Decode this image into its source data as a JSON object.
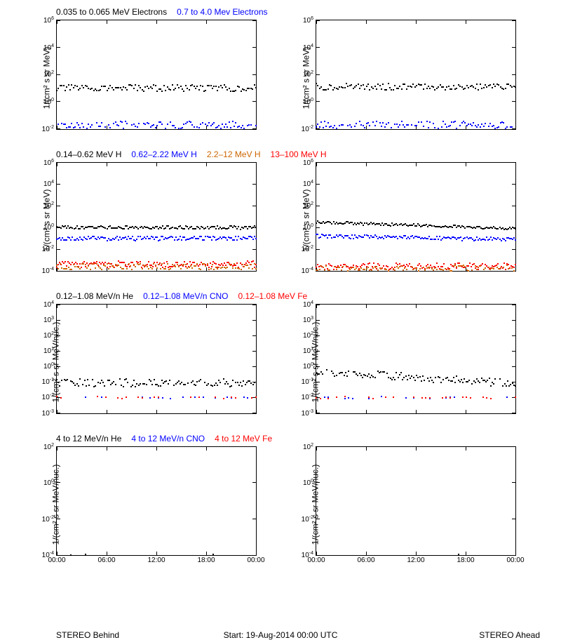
{
  "layout": {
    "rows": 4,
    "cols": 2
  },
  "xaxis": {
    "ticks": [
      "00:00",
      "06:00",
      "12:00",
      "18:00",
      "00:00"
    ],
    "showOnRows": [
      3
    ]
  },
  "bottom": {
    "left": "STEREO Behind",
    "mid": "Start: 19-Aug-2014 00:00 UTC",
    "right": "STEREO Ahead"
  },
  "rows": [
    {
      "ylabel": "1/(cm² s sr MeV)",
      "yexp": [
        -2,
        0,
        2,
        4,
        6
      ],
      "titles": [
        {
          "text": "0.035 to 0.065 MeV Electrons",
          "color": "#000000"
        },
        {
          "text": "0.7 to 4.0 Mev Electrons",
          "color": "#0000ff"
        }
      ],
      "titlesRight": [],
      "series": {
        "left": [
          {
            "color": "#000000",
            "baseExp": 1.0,
            "jitter": 0.25,
            "n": 120
          },
          {
            "color": "#0000ff",
            "baseExp": -1.8,
            "jitter": 0.35,
            "n": 120
          }
        ],
        "right": [
          {
            "color": "#000000",
            "baseExp": 1.1,
            "jitter": 0.25,
            "n": 120
          },
          {
            "color": "#0000ff",
            "baseExp": -1.8,
            "jitter": 0.35,
            "n": 120
          }
        ]
      }
    },
    {
      "ylabel": "1/(cm² s sr MeV)",
      "yexp": [
        -4,
        -2,
        0,
        2,
        4,
        6
      ],
      "titles": [
        {
          "text": "0.14–0.62 MeV H",
          "color": "#000000"
        },
        {
          "text": "0.62–2.22 MeV H",
          "color": "#0000ff"
        },
        {
          "text": "2.2–12 MeV H",
          "color": "#cc6600"
        },
        {
          "text": "13–100 MeV H",
          "color": "#ff0000"
        }
      ],
      "series": {
        "left": [
          {
            "color": "#000000",
            "baseExp": 0.0,
            "jitter": 0.15,
            "n": 140
          },
          {
            "color": "#0000ff",
            "baseExp": -1.0,
            "jitter": 0.2,
            "n": 140
          },
          {
            "color": "#ff0000",
            "baseExp": -3.4,
            "jitter": 0.3,
            "n": 140
          },
          {
            "color": "#cc6600",
            "baseExp": -3.6,
            "jitter": 0.3,
            "n": 120
          }
        ],
        "right": [
          {
            "color": "#000000",
            "baseExp": 0.5,
            "slope": -0.6,
            "jitter": 0.12,
            "n": 140
          },
          {
            "color": "#0000ff",
            "baseExp": -0.8,
            "slope": -0.3,
            "jitter": 0.18,
            "n": 140
          },
          {
            "color": "#ff0000",
            "baseExp": -3.6,
            "jitter": 0.3,
            "n": 140
          },
          {
            "color": "#cc6600",
            "baseExp": -3.8,
            "jitter": 0.3,
            "n": 120
          }
        ]
      }
    },
    {
      "ylabel": "1/(cm² s sr MeV/nuc.)",
      "yexp": [
        -3,
        -2,
        -1,
        0,
        1,
        2,
        3,
        4
      ],
      "titles": [
        {
          "text": "0.12–1.08 MeV/n He",
          "color": "#000000"
        },
        {
          "text": "0.12–1.08 MeV/n CNO",
          "color": "#0000ff"
        },
        {
          "text": "0.12–1.08 MeV Fe",
          "color": "#ff0000"
        }
      ],
      "series": {
        "left": [
          {
            "color": "#000000",
            "baseExp": -1.05,
            "jitter": 0.25,
            "n": 130,
            "sparse": 0.85
          },
          {
            "color": "#0000ff",
            "baseExp": -2.0,
            "jitter": 0.06,
            "n": 50,
            "sparse": 0.4
          },
          {
            "color": "#ff0000",
            "baseExp": -2.0,
            "jitter": 0.06,
            "n": 50,
            "sparse": 0.4
          }
        ],
        "right": [
          {
            "color": "#000000",
            "baseExp": -0.3,
            "slope": -0.8,
            "jitter": 0.25,
            "n": 130,
            "sparse": 0.9,
            "clampMinExp": -1.2
          },
          {
            "color": "#0000ff",
            "baseExp": -2.0,
            "jitter": 0.06,
            "n": 50,
            "sparse": 0.4
          },
          {
            "color": "#ff0000",
            "baseExp": -2.0,
            "jitter": 0.06,
            "n": 50,
            "sparse": 0.4
          }
        ]
      }
    },
    {
      "ylabel": "1/(cm² s sr MeV/nuc.)",
      "yexp": [
        -4,
        -2,
        0,
        2
      ],
      "titles": [
        {
          "text": "4 to 12 MeV/n He",
          "color": "#000000"
        },
        {
          "text": "4 to 12 MeV/n CNO",
          "color": "#0000ff"
        },
        {
          "text": "4 to 12 MeV Fe",
          "color": "#ff0000"
        }
      ],
      "series": {
        "left": [
          {
            "color": "#000000",
            "baseExp": -4.0,
            "jitter": 0.05,
            "n": 15,
            "sparse": 0.25
          }
        ],
        "right": [
          {
            "color": "#000000",
            "baseExp": -4.0,
            "jitter": 0.05,
            "n": 15,
            "sparse": 0.25
          }
        ]
      }
    }
  ]
}
